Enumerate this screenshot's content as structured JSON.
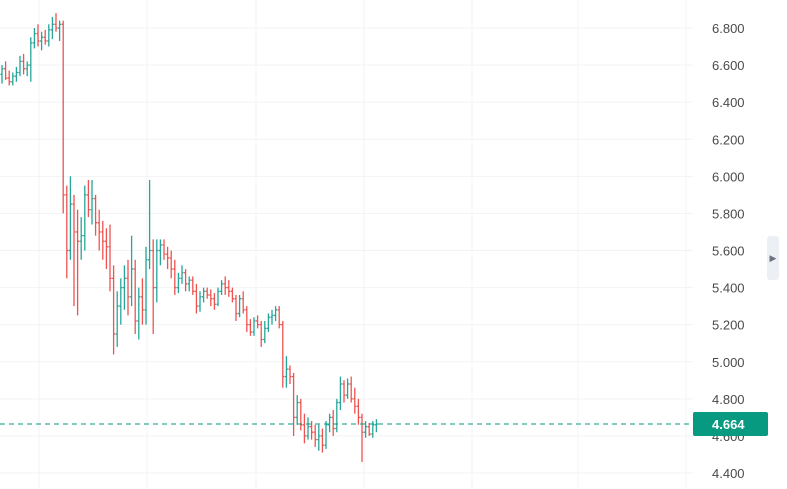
{
  "chart_data": {
    "type": "ohlc",
    "y_ticks": [
      "6.800",
      "6.600",
      "6.400",
      "6.200",
      "6.000",
      "5.800",
      "5.600",
      "5.400",
      "5.200",
      "5.000",
      "4.800",
      "4.600",
      "4.400"
    ],
    "y_range": [
      4.35,
      6.95
    ],
    "last_price": 4.664,
    "last_price_label": "4.664",
    "grid": true,
    "colors": {
      "up": "#26a69a",
      "down": "#ef5350",
      "price_line": "#089981",
      "grid": "#f0f3f6",
      "axis_text": "#4a4a4a"
    },
    "bars": [
      [
        6.55,
        6.6,
        6.5,
        6.58
      ],
      [
        6.58,
        6.62,
        6.52,
        6.53
      ],
      [
        6.53,
        6.57,
        6.49,
        6.51
      ],
      [
        6.51,
        6.56,
        6.49,
        6.54
      ],
      [
        6.54,
        6.59,
        6.51,
        6.56
      ],
      [
        6.56,
        6.65,
        6.54,
        6.62
      ],
      [
        6.62,
        6.66,
        6.55,
        6.58
      ],
      [
        6.58,
        6.62,
        6.54,
        6.6
      ],
      [
        6.6,
        6.75,
        6.51,
        6.72
      ],
      [
        6.72,
        6.8,
        6.69,
        6.77
      ],
      [
        6.77,
        6.82,
        6.7,
        6.73
      ],
      [
        6.73,
        6.78,
        6.68,
        6.75
      ],
      [
        6.75,
        6.79,
        6.71,
        6.73
      ],
      [
        6.73,
        6.82,
        6.7,
        6.79
      ],
      [
        6.79,
        6.86,
        6.74,
        6.82
      ],
      [
        6.82,
        6.88,
        6.78,
        6.8
      ],
      [
        6.8,
        6.84,
        6.73,
        6.82
      ],
      [
        6.82,
        6.84,
        5.8,
        5.9
      ],
      [
        5.9,
        5.95,
        5.45,
        5.6
      ],
      [
        5.6,
        6.0,
        5.55,
        5.85
      ],
      [
        5.85,
        5.9,
        5.3,
        5.7
      ],
      [
        5.7,
        5.82,
        5.25,
        5.65
      ],
      [
        5.65,
        5.78,
        5.55,
        5.68
      ],
      [
        5.68,
        5.95,
        5.6,
        5.9
      ],
      [
        5.9,
        5.98,
        5.78,
        5.82
      ],
      [
        5.82,
        5.98,
        5.74,
        5.88
      ],
      [
        5.88,
        5.9,
        5.68,
        5.75
      ],
      [
        5.75,
        5.82,
        5.6,
        5.7
      ],
      [
        5.7,
        5.76,
        5.55,
        5.65
      ],
      [
        5.65,
        5.72,
        5.5,
        5.62
      ],
      [
        5.62,
        5.74,
        5.38,
        5.45
      ],
      [
        5.45,
        5.52,
        5.04,
        5.15
      ],
      [
        5.15,
        5.38,
        5.08,
        5.3
      ],
      [
        5.3,
        5.45,
        5.2,
        5.4
      ],
      [
        5.4,
        5.52,
        5.28,
        5.45
      ],
      [
        5.45,
        5.55,
        5.25,
        5.35
      ],
      [
        5.35,
        5.68,
        5.3,
        5.5
      ],
      [
        5.5,
        5.55,
        5.15,
        5.22
      ],
      [
        5.22,
        5.4,
        5.12,
        5.35
      ],
      [
        5.35,
        5.45,
        5.2,
        5.28
      ],
      [
        5.28,
        5.62,
        5.2,
        5.55
      ],
      [
        5.55,
        5.98,
        5.5,
        5.6
      ],
      [
        5.6,
        5.66,
        5.15,
        5.4
      ],
      [
        5.4,
        5.66,
        5.32,
        5.6
      ],
      [
        5.6,
        5.66,
        5.52,
        5.63
      ],
      [
        5.63,
        5.66,
        5.55,
        5.58
      ],
      [
        5.58,
        5.62,
        5.5,
        5.56
      ],
      [
        5.56,
        5.6,
        5.45,
        5.5
      ],
      [
        5.5,
        5.55,
        5.36,
        5.4
      ],
      [
        5.4,
        5.48,
        5.37,
        5.45
      ],
      [
        5.45,
        5.52,
        5.42,
        5.48
      ],
      [
        5.48,
        5.5,
        5.38,
        5.42
      ],
      [
        5.42,
        5.46,
        5.38,
        5.44
      ],
      [
        5.44,
        5.46,
        5.36,
        5.38
      ],
      [
        5.38,
        5.42,
        5.26,
        5.3
      ],
      [
        5.3,
        5.38,
        5.27,
        5.35
      ],
      [
        5.35,
        5.4,
        5.32,
        5.38
      ],
      [
        5.38,
        5.4,
        5.34,
        5.36
      ],
      [
        5.36,
        5.39,
        5.3,
        5.34
      ],
      [
        5.34,
        5.37,
        5.28,
        5.31
      ],
      [
        5.31,
        5.4,
        5.3,
        5.38
      ],
      [
        5.38,
        5.44,
        5.36,
        5.42
      ],
      [
        5.42,
        5.46,
        5.36,
        5.4
      ],
      [
        5.4,
        5.44,
        5.35,
        5.38
      ],
      [
        5.38,
        5.4,
        5.32,
        5.34
      ],
      [
        5.34,
        5.36,
        5.22,
        5.26
      ],
      [
        5.26,
        5.36,
        5.24,
        5.34
      ],
      [
        5.34,
        5.38,
        5.26,
        5.28
      ],
      [
        5.28,
        5.3,
        5.16,
        5.2
      ],
      [
        5.2,
        5.23,
        5.14,
        5.16
      ],
      [
        5.16,
        5.24,
        5.14,
        5.22
      ],
      [
        5.22,
        5.25,
        5.18,
        5.2
      ],
      [
        5.2,
        5.22,
        5.08,
        5.12
      ],
      [
        5.12,
        5.22,
        5.1,
        5.18
      ],
      [
        5.18,
        5.26,
        5.16,
        5.24
      ],
      [
        5.24,
        5.28,
        5.2,
        5.25
      ],
      [
        5.25,
        5.3,
        5.22,
        5.28
      ],
      [
        5.28,
        5.3,
        5.18,
        5.2
      ],
      [
        5.2,
        5.22,
        4.86,
        4.92
      ],
      [
        4.92,
        5.03,
        4.86,
        4.96
      ],
      [
        4.96,
        4.98,
        4.88,
        4.92
      ],
      [
        4.92,
        4.94,
        4.6,
        4.7
      ],
      [
        4.7,
        4.82,
        4.66,
        4.78
      ],
      [
        4.78,
        4.8,
        4.63,
        4.66
      ],
      [
        4.66,
        4.72,
        4.56,
        4.6
      ],
      [
        4.6,
        4.7,
        4.58,
        4.65
      ],
      [
        4.65,
        4.68,
        4.58,
        4.62
      ],
      [
        4.62,
        4.66,
        4.54,
        4.58
      ],
      [
        4.58,
        4.66,
        4.52,
        4.6
      ],
      [
        4.6,
        4.64,
        4.51,
        4.55
      ],
      [
        4.55,
        4.68,
        4.53,
        4.66
      ],
      [
        4.66,
        4.72,
        4.62,
        4.7
      ],
      [
        4.7,
        4.74,
        4.6,
        4.64
      ],
      [
        4.64,
        4.8,
        4.62,
        4.78
      ],
      [
        4.78,
        4.92,
        4.74,
        4.88
      ],
      [
        4.88,
        4.9,
        4.78,
        4.82
      ],
      [
        4.82,
        4.91,
        4.8,
        4.88
      ],
      [
        4.88,
        4.92,
        4.78,
        4.8
      ],
      [
        4.8,
        4.86,
        4.72,
        4.76
      ],
      [
        4.76,
        4.8,
        4.66,
        4.7
      ],
      [
        4.7,
        4.72,
        4.46,
        4.62
      ],
      [
        4.62,
        4.68,
        4.59,
        4.65
      ],
      [
        4.65,
        4.67,
        4.6,
        4.61
      ],
      [
        4.61,
        4.68,
        4.59,
        4.66
      ],
      [
        4.66,
        4.69,
        4.62,
        4.664
      ]
    ]
  }
}
